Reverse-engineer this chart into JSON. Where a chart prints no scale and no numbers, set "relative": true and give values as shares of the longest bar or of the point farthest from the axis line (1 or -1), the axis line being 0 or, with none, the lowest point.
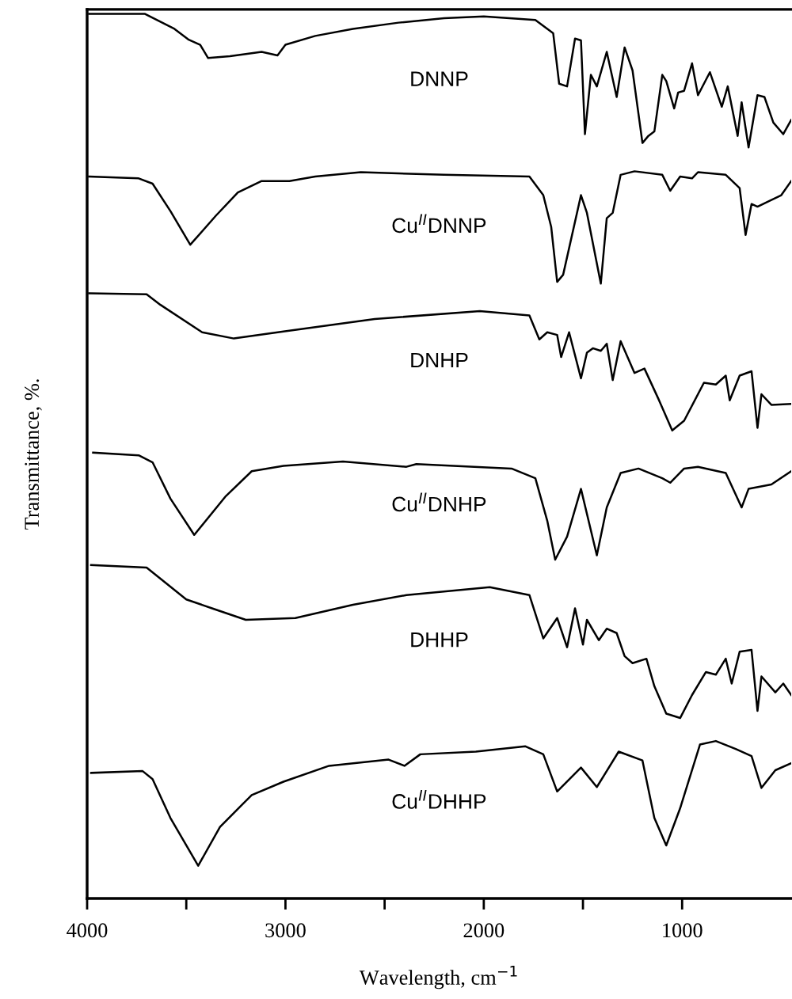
{
  "chart_data": {
    "type": "line",
    "relative": true,
    "xlabel": "Wavelength, cm$^{−1}$",
    "ylabel": "Transmittance, %.",
    "xlim": [
      4000,
      450
    ],
    "xticks": [
      4000,
      {
        "value": 3500,
        "label": null
      },
      3000,
      {
        "value": 2500,
        "label": null
      },
      2000,
      {
        "value": 1500,
        "label": null
      },
      1000
    ],
    "grid": false,
    "legend": false,
    "marker": "none",
    "line_style": "solid",
    "series": [
      {
        "name": "DNNP",
        "color": "#000000",
        "x": [
          3990,
          3710,
          3560,
          3490,
          3430,
          3390,
          3280,
          3120,
          3040,
          3000,
          2850,
          2660,
          2430,
          2200,
          2000,
          1740,
          1650,
          1620,
          1580,
          1540,
          1510,
          1490,
          1460,
          1430,
          1380,
          1330,
          1290,
          1250,
          1200,
          1170,
          1140,
          1100,
          1080,
          1040,
          1020,
          990,
          950,
          920,
          860,
          800,
          770,
          720,
          700,
          665,
          620,
          585,
          540,
          490,
          450
        ],
        "values": [
          1.0,
          1.0,
          0.983,
          0.971,
          0.965,
          0.95,
          0.952,
          0.957,
          0.953,
          0.965,
          0.975,
          0.983,
          0.99,
          0.995,
          0.997,
          0.993,
          0.978,
          0.921,
          0.918,
          0.972,
          0.97,
          0.864,
          0.931,
          0.918,
          0.957,
          0.906,
          0.962,
          0.936,
          0.854,
          0.862,
          0.867,
          0.931,
          0.924,
          0.893,
          0.911,
          0.913,
          0.944,
          0.908,
          0.934,
          0.895,
          0.918,
          0.862,
          0.9,
          0.849,
          0.908,
          0.906,
          0.877,
          0.864,
          0.88
        ]
      },
      {
        "name": "Cu$^{II}$DNNP",
        "color": "#000000",
        "x": [
          3990,
          3740,
          3670,
          3580,
          3480,
          3350,
          3240,
          3120,
          2980,
          2850,
          2620,
          2200,
          1770,
          1700,
          1660,
          1630,
          1600,
          1510,
          1480,
          1410,
          1380,
          1350,
          1310,
          1240,
          1100,
          1060,
          1010,
          950,
          920,
          780,
          710,
          680,
          650,
          620,
          500,
          450
        ],
        "values": [
          0.816,
          0.814,
          0.808,
          0.777,
          0.739,
          0.772,
          0.798,
          0.811,
          0.811,
          0.816,
          0.821,
          0.818,
          0.816,
          0.795,
          0.759,
          0.697,
          0.705,
          0.795,
          0.775,
          0.695,
          0.769,
          0.775,
          0.818,
          0.822,
          0.818,
          0.8,
          0.816,
          0.814,
          0.821,
          0.818,
          0.803,
          0.75,
          0.785,
          0.782,
          0.795,
          0.811
        ]
      },
      {
        "name": "DNHP",
        "color": "#000000",
        "x": [
          3990,
          3700,
          3630,
          3420,
          3260,
          3010,
          2550,
          2020,
          1770,
          1720,
          1680,
          1630,
          1610,
          1570,
          1510,
          1480,
          1450,
          1410,
          1380,
          1350,
          1310,
          1240,
          1190,
          1120,
          1050,
          990,
          890,
          830,
          780,
          760,
          710,
          650,
          620,
          600,
          550,
          450
        ],
        "values": [
          0.684,
          0.683,
          0.671,
          0.64,
          0.633,
          0.641,
          0.655,
          0.664,
          0.659,
          0.632,
          0.64,
          0.637,
          0.612,
          0.64,
          0.588,
          0.617,
          0.622,
          0.619,
          0.627,
          0.586,
          0.63,
          0.594,
          0.599,
          0.565,
          0.529,
          0.54,
          0.583,
          0.581,
          0.591,
          0.563,
          0.591,
          0.596,
          0.532,
          0.57,
          0.558,
          0.559
        ]
      },
      {
        "name": "Cu$^{II}$DNHP",
        "color": "#000000",
        "x": [
          3970,
          3740,
          3670,
          3580,
          3460,
          3300,
          3170,
          3010,
          2710,
          2390,
          2340,
          1860,
          1740,
          1680,
          1640,
          1580,
          1510,
          1430,
          1380,
          1310,
          1220,
          1100,
          1060,
          990,
          920,
          780,
          700,
          665,
          550,
          450
        ],
        "values": [
          0.504,
          0.501,
          0.493,
          0.452,
          0.411,
          0.455,
          0.483,
          0.489,
          0.494,
          0.488,
          0.491,
          0.486,
          0.475,
          0.427,
          0.383,
          0.409,
          0.463,
          0.388,
          0.442,
          0.481,
          0.486,
          0.475,
          0.47,
          0.486,
          0.488,
          0.481,
          0.442,
          0.463,
          0.468,
          0.483
        ]
      },
      {
        "name": "DHHP",
        "color": "#000000",
        "x": [
          3980,
          3700,
          3500,
          3370,
          3200,
          2950,
          2660,
          2390,
          1970,
          1770,
          1700,
          1630,
          1580,
          1540,
          1500,
          1480,
          1420,
          1380,
          1330,
          1290,
          1250,
          1180,
          1140,
          1080,
          1010,
          950,
          880,
          830,
          780,
          750,
          710,
          650,
          620,
          600,
          530,
          490,
          450
        ],
        "values": [
          0.377,
          0.374,
          0.338,
          0.328,
          0.315,
          0.317,
          0.332,
          0.343,
          0.352,
          0.343,
          0.294,
          0.317,
          0.284,
          0.328,
          0.287,
          0.315,
          0.292,
          0.305,
          0.3,
          0.274,
          0.266,
          0.271,
          0.24,
          0.209,
          0.204,
          0.23,
          0.256,
          0.253,
          0.271,
          0.243,
          0.279,
          0.281,
          0.212,
          0.251,
          0.233,
          0.243,
          0.23
        ]
      },
      {
        "name": "Cu$^{II}$DHHP",
        "color": "#000000",
        "x": [
          3980,
          3720,
          3670,
          3580,
          3440,
          3330,
          3170,
          3010,
          2780,
          2480,
          2400,
          2320,
          2040,
          1790,
          1700,
          1630,
          1510,
          1430,
          1320,
          1200,
          1140,
          1080,
          1010,
          910,
          830,
          730,
          650,
          600,
          530,
          450
        ],
        "values": [
          0.142,
          0.144,
          0.135,
          0.091,
          0.037,
          0.081,
          0.117,
          0.132,
          0.15,
          0.157,
          0.15,
          0.163,
          0.166,
          0.172,
          0.163,
          0.121,
          0.148,
          0.126,
          0.166,
          0.156,
          0.091,
          0.06,
          0.102,
          0.174,
          0.178,
          0.169,
          0.161,
          0.125,
          0.145,
          0.153
        ]
      }
    ]
  }
}
